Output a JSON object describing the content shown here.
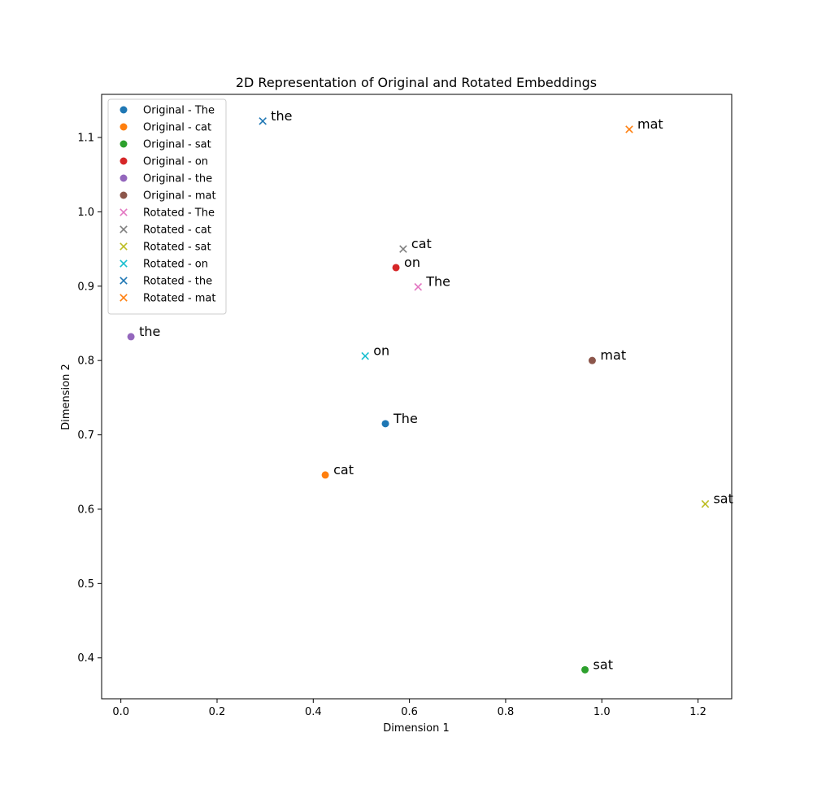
{
  "chart_data": {
    "type": "scatter",
    "title": "2D Representation of Original and Rotated Embeddings",
    "xlabel": "Dimension 1",
    "ylabel": "Dimension 2",
    "xlim": [
      -0.04,
      1.27
    ],
    "ylim": [
      0.345,
      1.158
    ],
    "xticks": [
      "0.0",
      "0.2",
      "0.4",
      "0.6",
      "0.8",
      "1.0",
      "1.2"
    ],
    "yticks": [
      "0.4",
      "0.5",
      "0.6",
      "0.7",
      "0.8",
      "0.9",
      "1.0",
      "1.1"
    ],
    "grid": false,
    "legend_position": "upper-left",
    "series": [
      {
        "name": "Original - The",
        "marker": "circle",
        "color": "#1f77b4",
        "x": 0.55,
        "y": 0.715,
        "label": "The"
      },
      {
        "name": "Original - cat",
        "marker": "circle",
        "color": "#ff7f0e",
        "x": 0.425,
        "y": 0.646,
        "label": "cat"
      },
      {
        "name": "Original - sat",
        "marker": "circle",
        "color": "#2ca02c",
        "x": 0.965,
        "y": 0.384,
        "label": "sat"
      },
      {
        "name": "Original - on",
        "marker": "circle",
        "color": "#d62728",
        "x": 0.572,
        "y": 0.925,
        "label": "on"
      },
      {
        "name": "Original - the",
        "marker": "circle",
        "color": "#9467bd",
        "x": 0.021,
        "y": 0.832,
        "label": "the"
      },
      {
        "name": "Original - mat",
        "marker": "circle",
        "color": "#8c564b",
        "x": 0.98,
        "y": 0.8,
        "label": "mat"
      },
      {
        "name": "Rotated - The",
        "marker": "x",
        "color": "#e377c2",
        "x": 0.618,
        "y": 0.899,
        "label": "The"
      },
      {
        "name": "Rotated - cat",
        "marker": "x",
        "color": "#7f7f7f",
        "x": 0.587,
        "y": 0.95,
        "label": "cat"
      },
      {
        "name": "Rotated - sat",
        "marker": "x",
        "color": "#bcbd22",
        "x": 1.215,
        "y": 0.607,
        "label": "sat"
      },
      {
        "name": "Rotated - on",
        "marker": "x",
        "color": "#17becf",
        "x": 0.508,
        "y": 0.806,
        "label": "on"
      },
      {
        "name": "Rotated - the",
        "marker": "x",
        "color": "#1f77b4",
        "x": 0.295,
        "y": 1.122,
        "label": "the"
      },
      {
        "name": "Rotated - mat",
        "marker": "x",
        "color": "#ff7f0e",
        "x": 1.057,
        "y": 1.111,
        "label": "mat"
      }
    ]
  }
}
